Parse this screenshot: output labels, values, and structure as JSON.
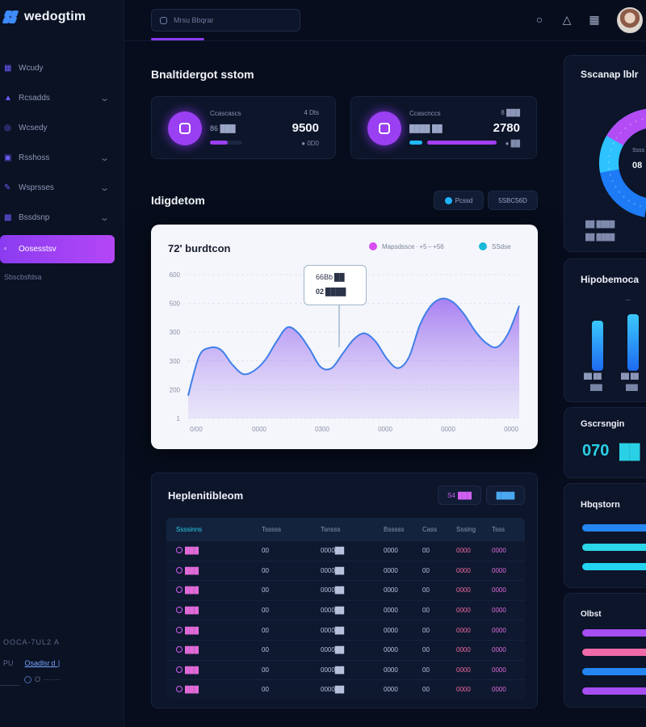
{
  "app": {
    "name": "wedogtim"
  },
  "sidebar": {
    "items": [
      {
        "label": "Wcudy",
        "icon": "grid-icon",
        "chevron": false
      },
      {
        "label": "Rcsadds",
        "icon": "layers-icon",
        "chevron": true
      },
      {
        "label": "Wcsedy",
        "icon": "target-icon",
        "chevron": false
      },
      {
        "label": "Rsshoss",
        "icon": "folder-icon",
        "chevron": true
      },
      {
        "label": "Wsprsses",
        "icon": "pen-icon",
        "chevron": true
      },
      {
        "label": "Bssdsnp",
        "icon": "calendar-icon",
        "chevron": true
      },
      {
        "label": "Oosesstsv",
        "icon": "chart-icon",
        "chevron": false,
        "active": true
      }
    ],
    "sub_label": "Sbscbsfdsa",
    "footer_line1": "OOCA‑7UL2 A",
    "footer_line2a": "PU",
    "footer_line2b": "Osadlsr d  |",
    "footer_line3": "O  ·······"
  },
  "header": {
    "search_placeholder": "Mrsu Bbqrar",
    "icons": [
      "circle-icon",
      "bell-icon",
      "layout-icon"
    ]
  },
  "summary": {
    "title": "Bnaltidergot sstom",
    "cards": [
      {
        "label": "Ccascascs",
        "sub": "86 ███",
        "delta": "4 Dts",
        "value": "9500",
        "foot": "● 0D0"
      },
      {
        "label": "Ccascnccs",
        "sub": "████ ██",
        "delta": "8 ███",
        "value": "2780",
        "foot": "● ██"
      }
    ]
  },
  "analytics": {
    "title": "Idigdetom",
    "btn_left": "Pcssd",
    "btn_right": "5SBC56D"
  },
  "chart_data": {
    "type": "area",
    "title": "72' burdtcon",
    "legend": [
      {
        "label": "Mapsdssce · +5 – +56",
        "color": "#d84ef0"
      },
      {
        "label": "SSdse",
        "color": "#1ab8d8"
      }
    ],
    "y_ticks": [
      "1",
      "200",
      "300",
      "300",
      "500",
      "600"
    ],
    "x_ticks": [
      "0/00",
      "0000",
      "0300",
      "0000",
      "0000",
      "0000"
    ],
    "ylim": [
      0,
      600
    ],
    "x": [
      0,
      2,
      4,
      6,
      8,
      10,
      12,
      14,
      16,
      18,
      20,
      22,
      24,
      26,
      28,
      30,
      32,
      34,
      36,
      38,
      40,
      42,
      44,
      46,
      48,
      50,
      52,
      54,
      56,
      58,
      60
    ],
    "values": [
      95,
      260,
      295,
      285,
      225,
      185,
      200,
      245,
      320,
      380,
      355,
      290,
      215,
      210,
      270,
      330,
      355,
      320,
      250,
      210,
      255,
      390,
      470,
      500,
      485,
      435,
      365,
      315,
      298,
      355,
      470
    ],
    "tooltip": {
      "line1": "66Bb ██",
      "line2": "02 ████"
    }
  },
  "table": {
    "title": "Heplenitibleom",
    "btn_left": "S4  ███",
    "btn_right": "████",
    "columns": [
      "Ssssinns",
      "Tsssss",
      "Tsnsss",
      "Bsssss",
      "Cass",
      "Sssing",
      "Tsss"
    ],
    "rows": [
      [
        "███",
        "00",
        "0000██",
        "0000",
        "00",
        "0000",
        "0000"
      ],
      [
        "███",
        "00",
        "0000██",
        "0000",
        "00",
        "0000",
        "0000"
      ],
      [
        "███",
        "00",
        "0000██",
        "0000",
        "00",
        "0000",
        "0000"
      ],
      [
        "███",
        "00",
        "0000██",
        "0000",
        "00",
        "0000",
        "0000"
      ],
      [
        "███",
        "00",
        "0000██",
        "0000",
        "00",
        "0000",
        "0000"
      ],
      [
        "███",
        "00",
        "0000██",
        "0000",
        "00",
        "0000",
        "0000"
      ],
      [
        "███",
        "00",
        "0000██",
        "0000",
        "00",
        "0000",
        "0000"
      ],
      [
        "███",
        "00",
        "0000██",
        "0000",
        "00",
        "0000",
        "0000"
      ]
    ]
  },
  "right": {
    "donut_title": "Sscanap lblr",
    "donut_center1": "Ssss",
    "donut_center2": "08",
    "donut_foot": "██ ████",
    "donut_foot2": "██ ████",
    "bars_title": "Hipobemoca",
    "bars_labels": [
      "██ ██",
      "██ ██"
    ],
    "bars_sub": [
      "███",
      "███"
    ],
    "stat_title": "Gscrsngin",
    "stat_value": "070",
    "stat_value2": "██",
    "list_title": "Hbqstorn",
    "list2_title": "Olbst"
  }
}
